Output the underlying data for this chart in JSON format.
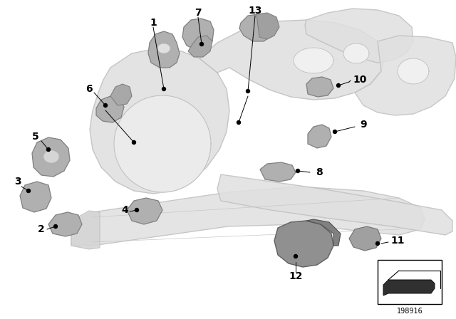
{
  "bg_color": "#ffffff",
  "fig_width": 6.4,
  "fig_height": 4.48,
  "dpi": 100,
  "part_number": "198916",
  "body_color": "#d8d8d8",
  "body_edge": "#b0b0b0",
  "part_color": "#b0b0b0",
  "part_edge": "#808080",
  "ghost_color": "#e0e0e0",
  "ghost_edge": "#c0c0c0"
}
